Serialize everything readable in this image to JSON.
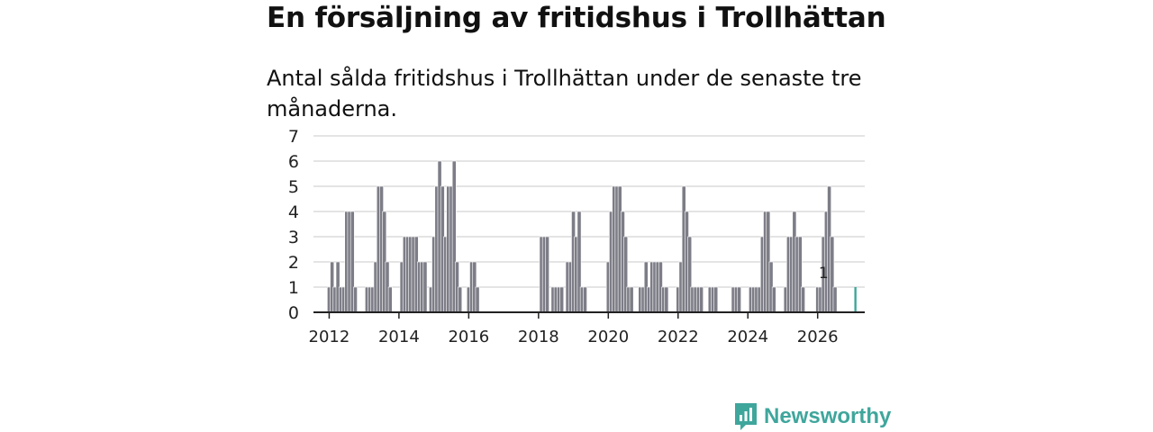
{
  "header": {
    "title": "En försäljning av fritidshus i Trollhättan",
    "subtitle": "Antal sålda fritidshus i Trollhättan under de senaste tre månaderna."
  },
  "brand": {
    "name": "Newsworthy",
    "color": "#3fa69c"
  },
  "chart_data": {
    "type": "bar",
    "title": "En försäljning av fritidshus i Trollhättan",
    "subtitle": "Antal sålda fritidshus i Trollhättan under de senaste tre månaderna.",
    "xlabel": "",
    "ylabel": "",
    "ylim": [
      0,
      7
    ],
    "yticks": [
      0,
      1,
      2,
      3,
      4,
      5,
      6,
      7
    ],
    "xlim": [
      2011.55,
      2027.35
    ],
    "xticks": [
      2012,
      2014,
      2016,
      2018,
      2020,
      2022,
      2024,
      2026
    ],
    "grid": true,
    "bar_color": "#7d7d87",
    "highlight_color": "#3fa69c",
    "x_start": 2012.0,
    "x_step": 0.08333,
    "values": [
      1,
      2,
      1,
      2,
      1,
      1,
      4,
      4,
      4,
      1,
      null,
      null,
      null,
      1,
      1,
      1,
      2,
      5,
      5,
      4,
      2,
      1,
      null,
      null,
      null,
      2,
      3,
      3,
      3,
      3,
      3,
      2,
      2,
      2,
      null,
      1,
      3,
      5,
      6,
      5,
      3,
      5,
      5,
      6,
      2,
      1,
      null,
      null,
      1,
      2,
      2,
      1,
      null,
      null,
      null,
      null,
      null,
      null,
      null,
      null,
      null,
      null,
      null,
      null,
      null,
      null,
      null,
      null,
      null,
      null,
      null,
      null,
      null,
      3,
      3,
      3,
      null,
      1,
      1,
      1,
      1,
      null,
      2,
      2,
      4,
      3,
      4,
      1,
      1,
      null,
      null,
      null,
      null,
      null,
      null,
      null,
      2,
      4,
      5,
      5,
      5,
      4,
      3,
      1,
      1,
      null,
      null,
      1,
      1,
      2,
      1,
      2,
      2,
      2,
      2,
      1,
      1,
      null,
      null,
      null,
      1,
      2,
      5,
      4,
      3,
      1,
      1,
      1,
      1,
      null,
      null,
      1,
      1,
      1,
      null,
      null,
      null,
      null,
      null,
      1,
      1,
      1,
      null,
      null,
      null,
      1,
      1,
      1,
      1,
      3,
      4,
      4,
      2,
      1,
      null,
      null,
      null,
      1,
      3,
      3,
      4,
      3,
      3,
      1,
      null,
      null,
      null,
      null,
      1,
      1,
      3,
      4,
      5,
      3,
      1,
      null,
      null,
      null,
      null,
      null,
      null,
      1
    ],
    "annotations": [
      {
        "x": 2026.17,
        "y": 1,
        "text": "1"
      }
    ]
  }
}
